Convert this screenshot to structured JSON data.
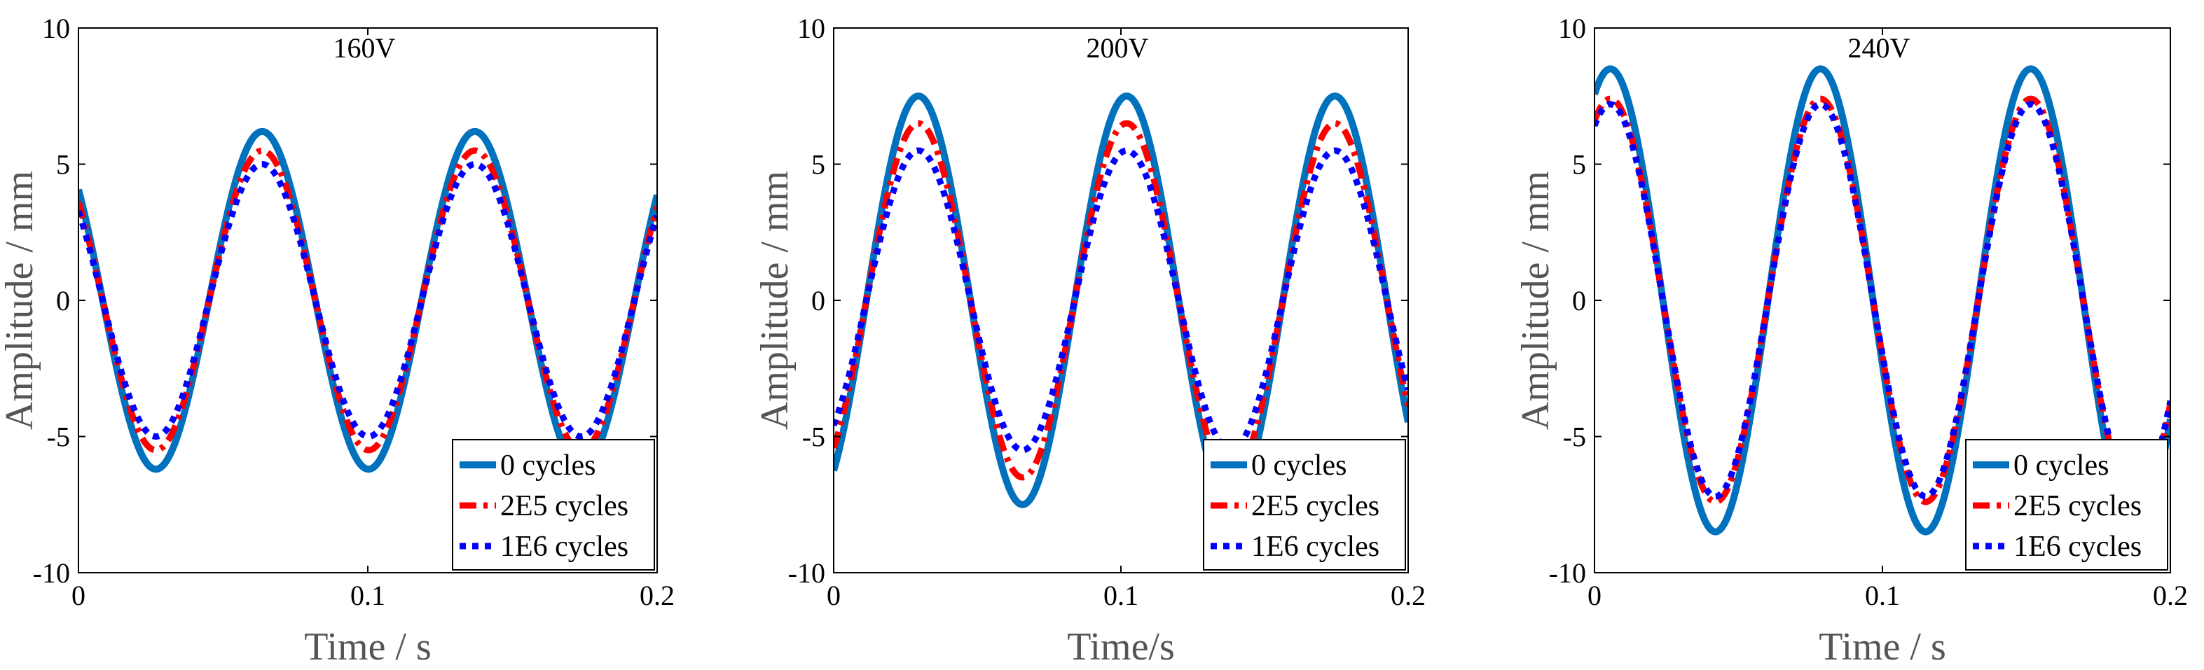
{
  "chart_data": [
    {
      "type": "line",
      "title": "160V",
      "xlabel": "Time / s",
      "ylabel": "Amplitude / mm",
      "xlim": [
        0,
        0.2
      ],
      "ylim": [
        -10,
        10
      ],
      "xticks": [
        "0",
        "0.1",
        "0.2"
      ],
      "yticks": [
        "-10",
        "-5",
        "0",
        "5",
        "10"
      ],
      "grid": false,
      "legend_position": "bottom-right",
      "series": [
        {
          "name": "0 cycles",
          "color": "#0072BD",
          "style": "solid",
          "amplitude": 6.2,
          "period": 0.0735,
          "phase_x": 0.0635
        },
        {
          "name": "2E5 cycles",
          "color": "#FF0000",
          "style": "dashdot",
          "amplitude": 5.5,
          "period": 0.0735,
          "phase_x": 0.0635
        },
        {
          "name": "1E6 cycles",
          "color": "#0000FF",
          "style": "dotted",
          "amplitude": 5.0,
          "period": 0.0735,
          "phase_x": 0.0635
        }
      ]
    },
    {
      "type": "line",
      "title": "200V",
      "xlabel": "Time/s",
      "ylabel": "Amplitude / mm",
      "xlim": [
        0,
        0.2
      ],
      "ylim": [
        -10,
        10
      ],
      "xticks": [
        "0",
        "0.1",
        "0.2"
      ],
      "yticks": [
        "-10",
        "-5",
        "0",
        "5",
        "10"
      ],
      "grid": false,
      "legend_position": "bottom-right",
      "series": [
        {
          "name": "0 cycles",
          "color": "#0072BD",
          "style": "solid",
          "amplitude": 7.5,
          "period": 0.0725,
          "phase_x": 0.0295
        },
        {
          "name": "2E5 cycles",
          "color": "#FF0000",
          "style": "dashdot",
          "amplitude": 6.5,
          "period": 0.0725,
          "phase_x": 0.0295
        },
        {
          "name": "1E6 cycles",
          "color": "#0000FF",
          "style": "dotted",
          "amplitude": 5.5,
          "period": 0.0725,
          "phase_x": 0.0295
        }
      ]
    },
    {
      "type": "line",
      "title": "240V",
      "xlabel": "Time / s",
      "ylabel": "Amplitude / mm",
      "xlim": [
        0,
        0.2
      ],
      "ylim": [
        -10,
        10
      ],
      "xticks": [
        "0",
        "0.1",
        "0.2"
      ],
      "yticks": [
        "-10",
        "-5",
        "0",
        "5",
        "10"
      ],
      "grid": false,
      "legend_position": "bottom-right",
      "series": [
        {
          "name": "0 cycles",
          "color": "#0072BD",
          "style": "solid",
          "amplitude": 8.5,
          "period": 0.073,
          "phase_x": 0.0055
        },
        {
          "name": "2E5 cycles",
          "color": "#FF0000",
          "style": "dashdot",
          "amplitude": 7.4,
          "period": 0.073,
          "phase_x": 0.0055
        },
        {
          "name": "1E6 cycles",
          "color": "#0000FF",
          "style": "dotted",
          "amplitude": 7.2,
          "period": 0.073,
          "phase_x": 0.0055
        }
      ]
    }
  ]
}
